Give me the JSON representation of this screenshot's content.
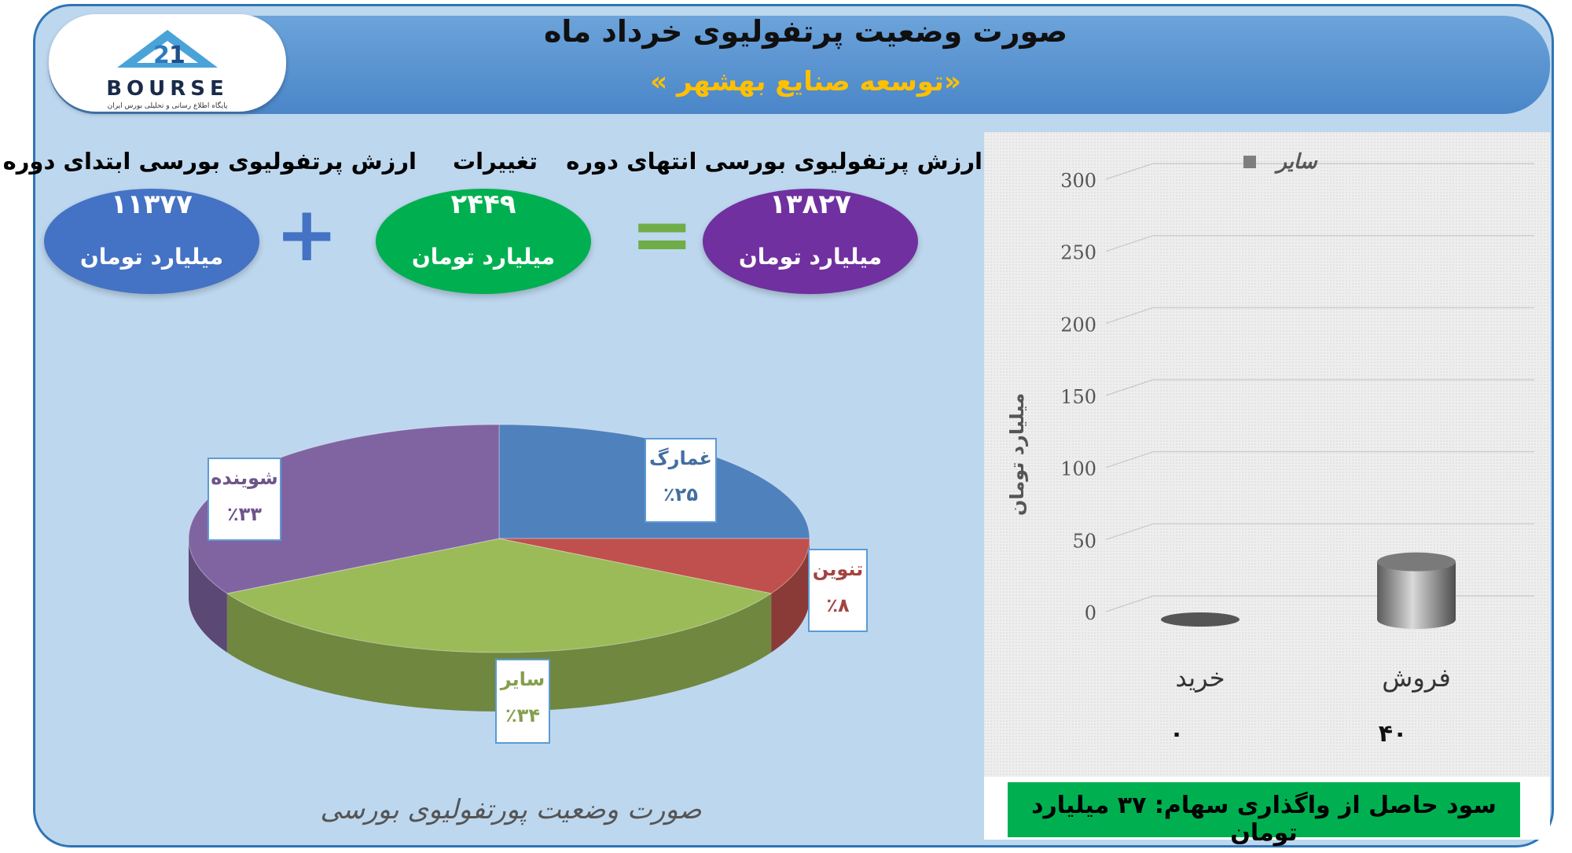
{
  "logo": {
    "brand": "BOURSE",
    "subtitle": "پایگاه اطلاع رسانی و تحلیلی بورس ایران"
  },
  "header": {
    "title": "صورت وضعیت پرتفولیوی خرداد ماه",
    "subtitle": "«توسعه صنایع بهشهر »"
  },
  "summary": {
    "start": {
      "label": "ارزش پرتفولیوی بورسی ابتدای دوره",
      "value": "۱۱۳۷۷",
      "unit": "میلیارد تومان"
    },
    "change": {
      "label": "تغییرات",
      "value": "۲۴۴۹",
      "unit": "میلیارد تومان"
    },
    "end": {
      "label": "ارزش پرتفولیوی بورسی انتهای دوره",
      "value": "۱۳۸۲۷",
      "unit": "میلیارد تومان"
    },
    "plus": "+",
    "equals": "="
  },
  "colors": {
    "start": "#4472c4",
    "change": "#00b050",
    "end": "#7030a0",
    "plus": "#4472c4",
    "equals": "#70ad47"
  },
  "chart_data": [
    {
      "type": "pie",
      "title": "صورت وضعیت پورتفولیوی بورسی",
      "slices": [
        {
          "name": "غمارگ",
          "value": 25,
          "label": "٪۲۵",
          "color": "#4f81bd"
        },
        {
          "name": "تنوین",
          "value": 8,
          "label": "٪۸",
          "color": "#c0504d"
        },
        {
          "name": "سایر",
          "value": 34,
          "label": "٪۳۴",
          "color": "#9bbb59"
        },
        {
          "name": "شوینده",
          "value": 33,
          "label": "٪۳۳",
          "color": "#8064a2"
        }
      ]
    },
    {
      "type": "bar",
      "legend": "سایر",
      "ylabel": "میلیارد تومان",
      "ylim": [
        0,
        300
      ],
      "yticks": [
        0,
        50,
        100,
        150,
        200,
        250,
        300
      ],
      "categories": [
        "خرید",
        "فروش"
      ],
      "values": [
        0,
        40
      ],
      "data_labels": [
        "۰",
        "۴۰"
      ],
      "footer": "سود حاصل از واگذاری سهام: ۳۷ میلیارد تومان"
    }
  ]
}
